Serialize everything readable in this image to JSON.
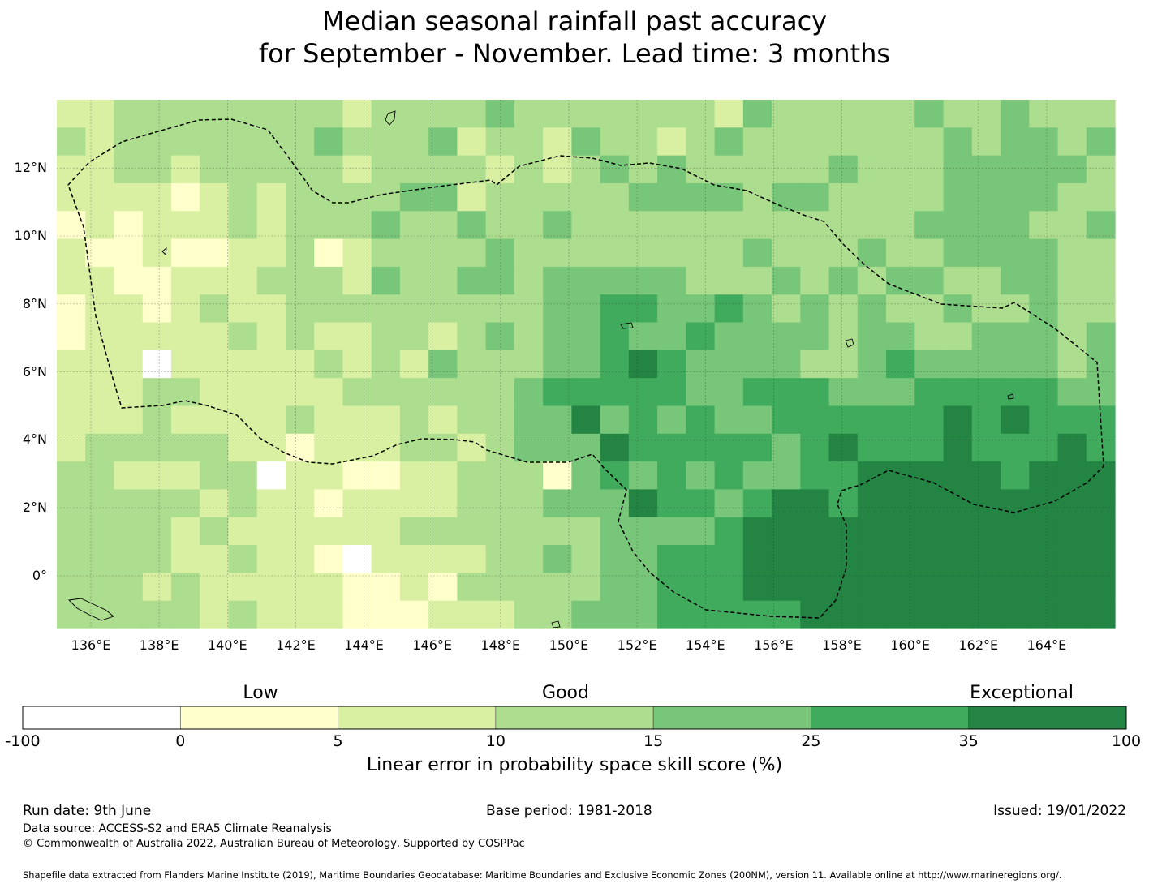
{
  "title_line1": "Median seasonal rainfall past accuracy",
  "title_line2": "for September - November. Lead time: 3 months",
  "map": {
    "lon_labels": [
      "136°E",
      "138°E",
      "140°E",
      "142°E",
      "144°E",
      "146°E",
      "148°E",
      "150°E",
      "152°E",
      "154°E",
      "156°E",
      "158°E",
      "160°E",
      "162°E",
      "164°E"
    ],
    "lat_labels": [
      "12°N",
      "10°N",
      "8°N",
      "6°N",
      "4°N",
      "2°N",
      "0°"
    ],
    "grid_color": "#2f2f2f",
    "boundary_style": "dashed black line",
    "region_note": "Federated States of Micronesia EEZ"
  },
  "colorbar": {
    "categories": [
      {
        "label": "Low"
      },
      {
        "label": "Good"
      },
      {
        "label": "Exceptional"
      }
    ],
    "ticks": [
      "-100",
      "0",
      "5",
      "10",
      "15",
      "25",
      "35",
      "100"
    ],
    "colors": [
      "#ffffff",
      "#ffffcc",
      "#d9f0a3",
      "#addd8e",
      "#78c679",
      "#41ab5d",
      "#238443"
    ],
    "label": "Linear error in probability space skill score (%)"
  },
  "footer": {
    "run_date": "Run date: 9th June",
    "base_period": "Base period: 1981-2018",
    "issued": "Issued: 19/01/2022",
    "data_source": "Data source: ACCESS-S2 and ERA5 Climate Reanalysis",
    "copyright": "© Commonwealth of Australia 2022, Australian Bureau of Meteorology, Supported by COSPPac",
    "shapefile": "Shapefile data extracted from Flanders Marine Institute (2019), Maritime Boundaries Geodatabase: Maritime Boundaries and Exclusive Economic Zones (200NM), version 11. Available online at http://www.marineregions.org/."
  }
}
